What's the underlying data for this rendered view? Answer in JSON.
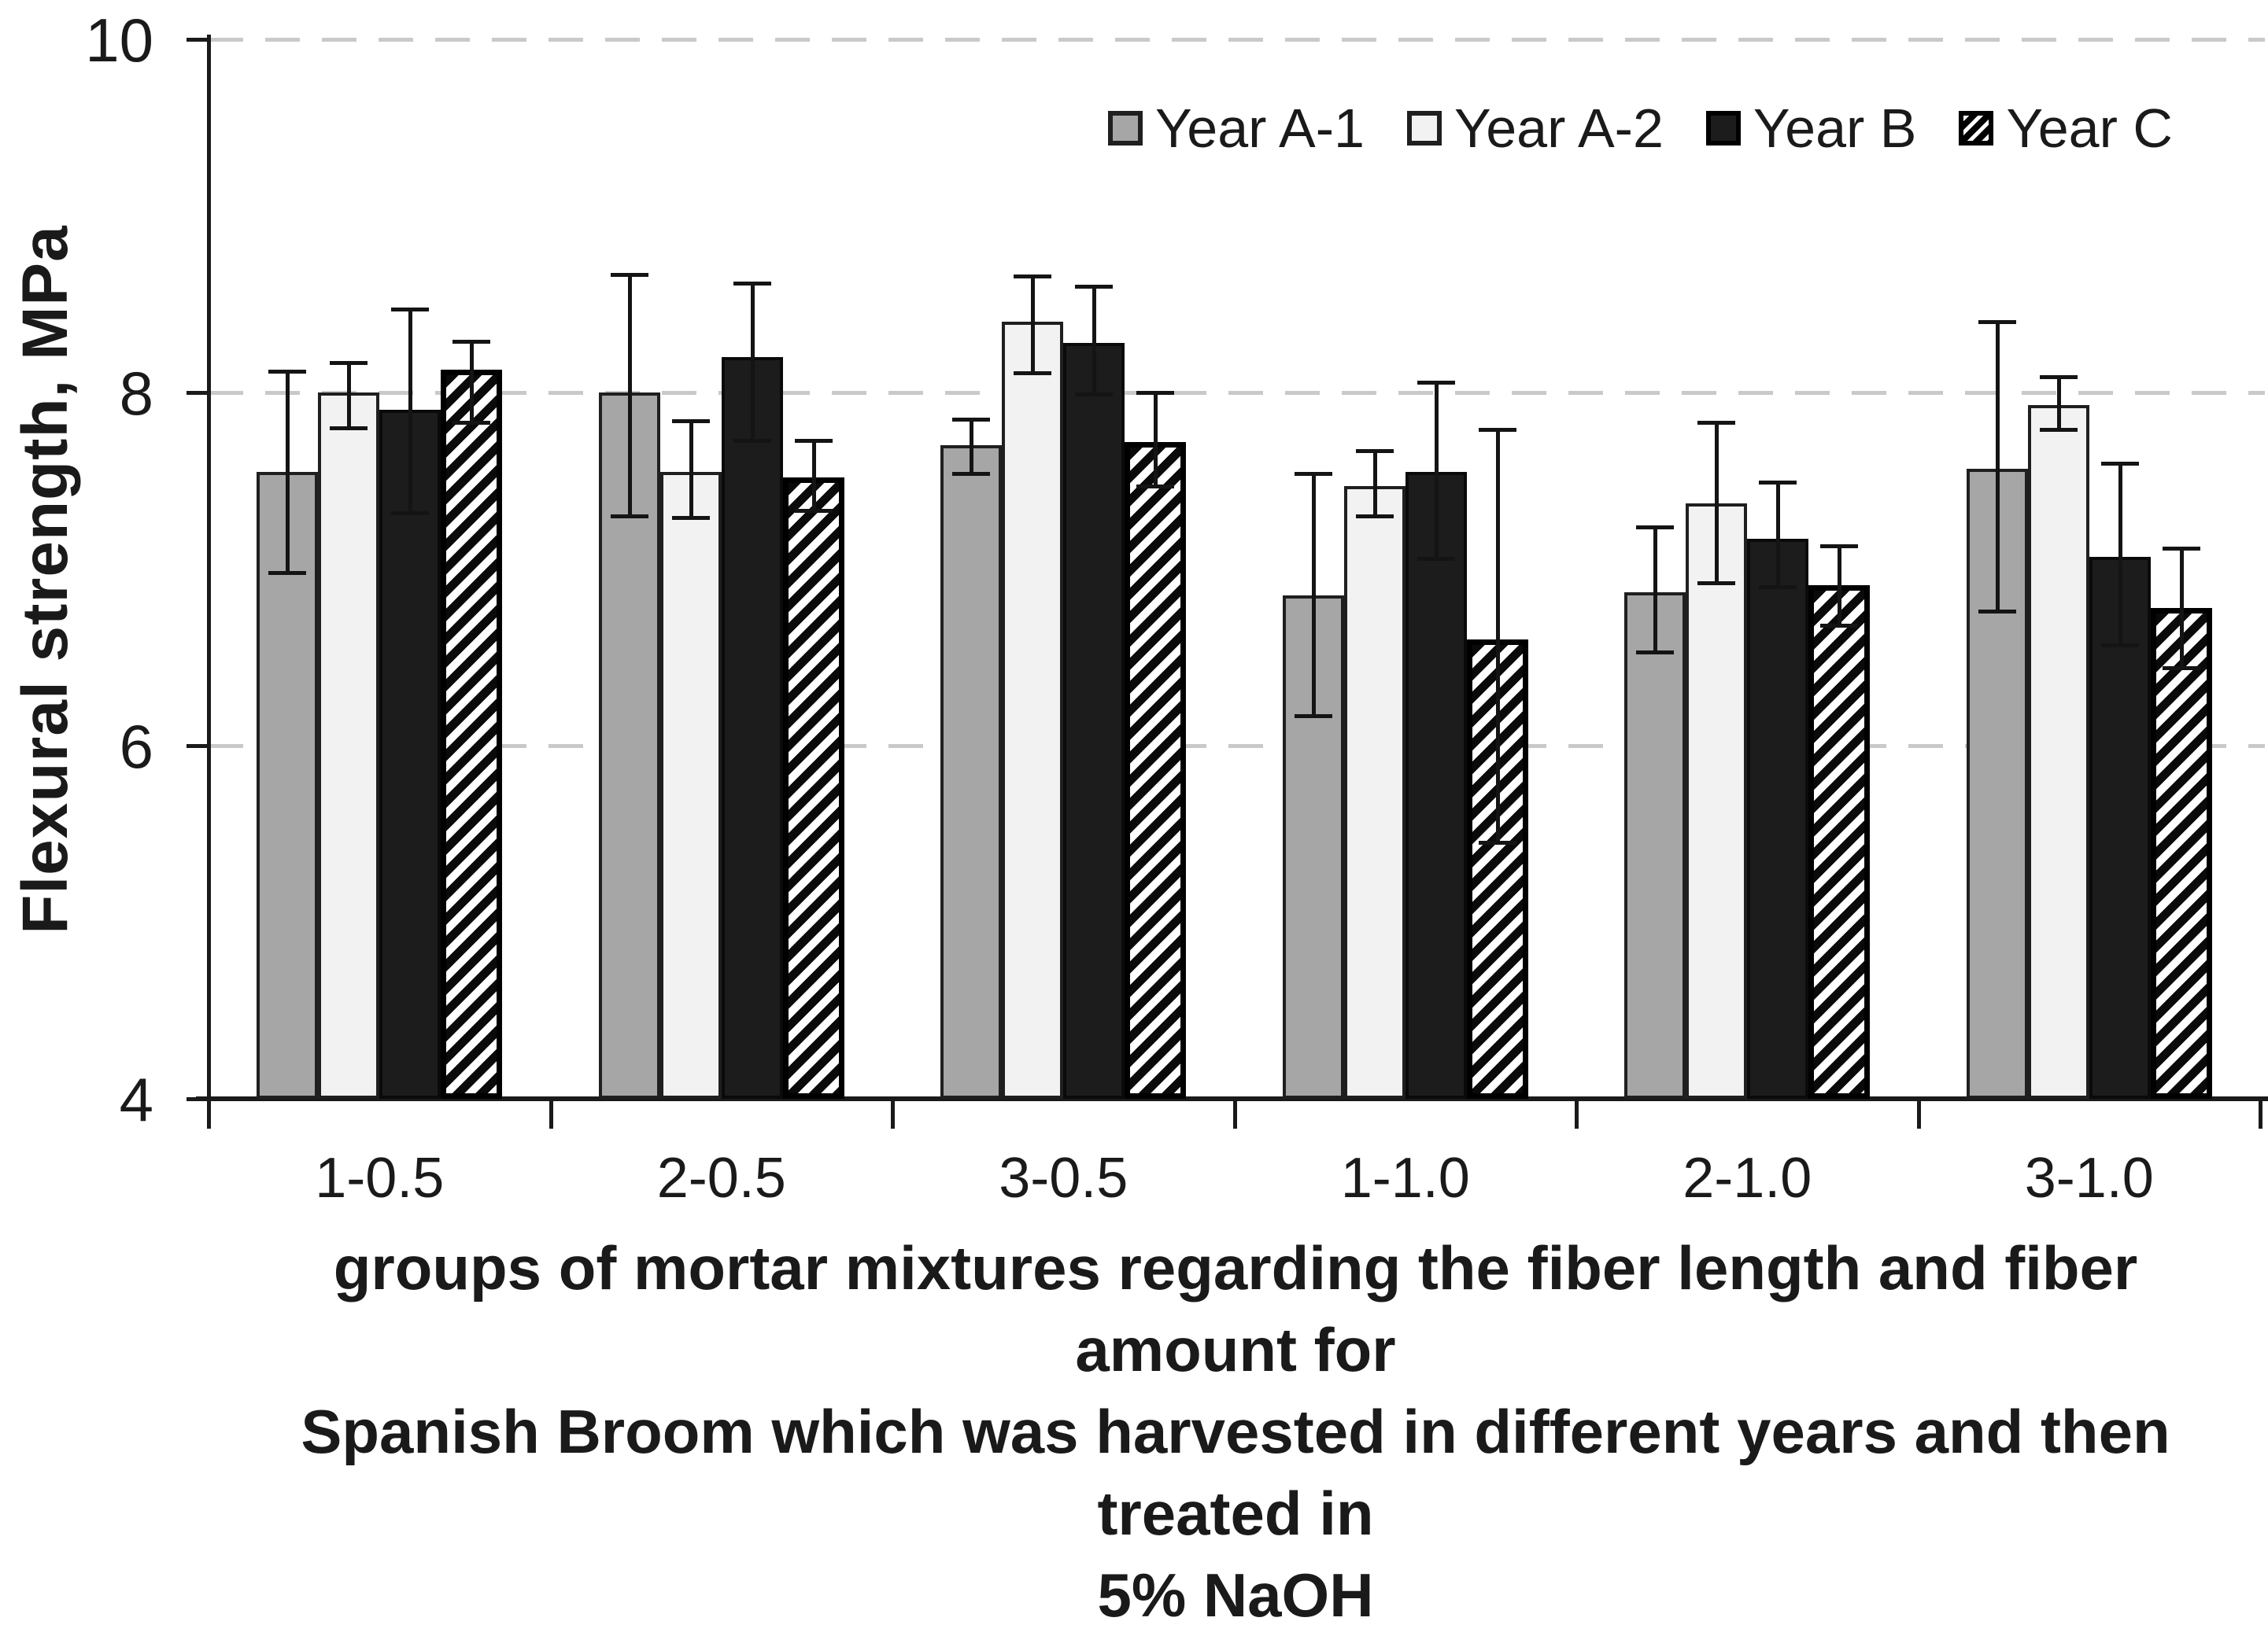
{
  "chart_data": {
    "type": "bar",
    "title": "",
    "ylabel": "Flexural strength, MPa",
    "xlabel_lines": [
      "groups of mortar mixtures regarding the fiber length and fiber amount for",
      "Spanish Broom which was harvested in different years and then treated in",
      "5% NaOH"
    ],
    "categories": [
      "1-0.5",
      "2-0.5",
      "3-0.5",
      "1-1.0",
      "2-1.0",
      "3-1.0"
    ],
    "series": [
      {
        "name": "Year A-1",
        "swatch": "gray",
        "fill": "#a6a6a6",
        "values": [
          7.55,
          8.0,
          7.7,
          6.85,
          6.87,
          7.57
        ],
        "err_lo": [
          6.98,
          7.3,
          7.54,
          6.17,
          6.53,
          6.76
        ],
        "err_hi": [
          8.12,
          8.67,
          7.85,
          7.54,
          7.24,
          8.4
        ]
      },
      {
        "name": "Year A-2",
        "swatch": "light",
        "fill": "#f2f2f2",
        "values": [
          8.0,
          7.55,
          8.4,
          7.47,
          7.37,
          7.93
        ],
        "err_lo": [
          7.8,
          7.29,
          8.11,
          7.3,
          6.92,
          7.79
        ],
        "err_hi": [
          8.17,
          7.84,
          8.66,
          7.67,
          7.83,
          8.09
        ]
      },
      {
        "name": "Year B",
        "swatch": "black",
        "fill": "#1c1c1c",
        "values": [
          7.9,
          8.2,
          8.28,
          7.55,
          7.17,
          7.07
        ],
        "err_lo": [
          7.32,
          7.73,
          7.99,
          7.06,
          6.9,
          6.57
        ],
        "err_hi": [
          8.47,
          8.62,
          8.6,
          8.06,
          7.49,
          7.6
        ]
      },
      {
        "name": "Year C",
        "swatch": "hatch",
        "fill": "diagonal-hatch",
        "values": [
          8.13,
          7.52,
          7.72,
          6.6,
          6.91,
          6.78
        ],
        "err_lo": [
          7.83,
          7.33,
          7.47,
          5.45,
          6.68,
          6.44
        ],
        "err_hi": [
          8.29,
          7.73,
          8.0,
          7.79,
          7.13,
          7.12
        ]
      }
    ],
    "ylim": [
      4,
      10
    ],
    "yticks": [
      4,
      6,
      8,
      10
    ],
    "grid": "dashed horizontal at 6, 8, 10",
    "grid_color": "#c9c9c9",
    "axis_color": "#1a1a1a",
    "legend_position": "top-right"
  }
}
